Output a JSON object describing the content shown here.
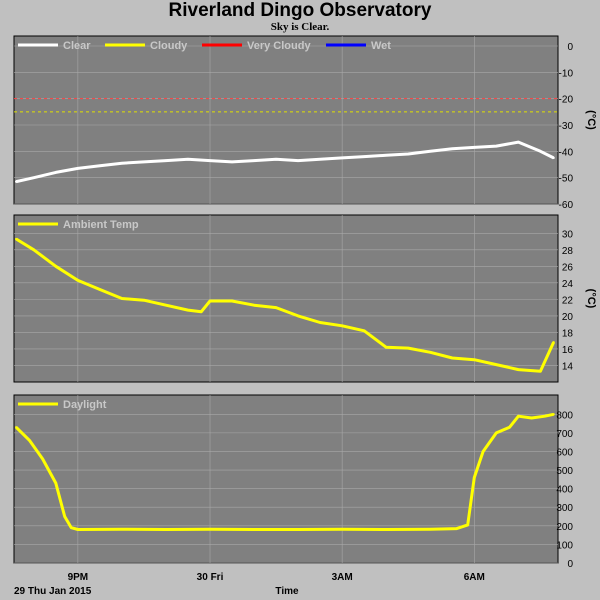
{
  "title": "Riverland Dingo Observatory",
  "subtitle": "Sky is Clear.",
  "footer": {
    "date_label": "29 Thu Jan 2015",
    "xlabel": "Time"
  },
  "colors": {
    "panel": "#808080",
    "grid": "#a8a8a8",
    "clear": "#ffffff",
    "cloudy": "#ffff00",
    "very_cloudy": "#ff0000",
    "wet": "#0000ff",
    "threshold_red": "#ff4040",
    "threshold_yellow": "#e0e000"
  },
  "chart_data": [
    {
      "type": "line",
      "ylabel": "(°C)",
      "ylim": [
        -60,
        0
      ],
      "yticks": [
        "0",
        "-10",
        "-20",
        "-30",
        "-40",
        "-50",
        "-60"
      ],
      "grid": true,
      "legend": [
        {
          "label": "Clear",
          "color": "#ffffff"
        },
        {
          "label": "Cloudy",
          "color": "#ffff00"
        },
        {
          "label": "Very Cloudy",
          "color": "#ff0000"
        },
        {
          "label": "Wet",
          "color": "#0000ff"
        }
      ],
      "thresholds": [
        {
          "y": -20,
          "color": "#ff4040"
        },
        {
          "y": -25,
          "color": "#e0e000"
        }
      ],
      "series": [
        {
          "name": "Clear",
          "color": "#ffffff",
          "x": [
            19.6,
            20.0,
            20.5,
            21.0,
            21.5,
            22.0,
            22.5,
            23.0,
            23.5,
            24.0,
            24.5,
            25.0,
            25.5,
            26.0,
            26.5,
            27.0,
            27.5,
            28.0,
            28.5,
            29.0,
            29.5,
            30.0,
            30.5,
            31.0,
            31.5,
            31.8
          ],
          "y": [
            -51.5,
            -50,
            -48,
            -46.5,
            -45.5,
            -44.5,
            -44,
            -43.5,
            -43,
            -43.5,
            -44,
            -43.5,
            -43,
            -43.5,
            -43,
            -42.5,
            -42,
            -41.5,
            -41,
            -40,
            -39,
            -38.5,
            -38,
            -36.5,
            -40,
            -42.5
          ]
        }
      ]
    },
    {
      "type": "line",
      "ylabel": "(°C)",
      "ylim": [
        12,
        31
      ],
      "yticks": [
        "30",
        "28",
        "26",
        "24",
        "22",
        "20",
        "18",
        "16",
        "14"
      ],
      "grid": true,
      "legend": [
        {
          "label": "Ambient Temp",
          "color": "#ffff00"
        }
      ],
      "series": [
        {
          "name": "Ambient Temp",
          "color": "#ffff00",
          "x": [
            19.6,
            20.0,
            20.5,
            21.0,
            21.5,
            22.0,
            22.5,
            23.0,
            23.5,
            23.8,
            24.0,
            24.5,
            25.0,
            25.5,
            26.0,
            26.5,
            27.0,
            27.5,
            28.0,
            28.5,
            29.0,
            29.5,
            30.0,
            30.5,
            31.0,
            31.5,
            31.8
          ],
          "y": [
            29.3,
            28,
            26,
            24.3,
            23.2,
            22.1,
            21.9,
            21.3,
            20.7,
            20.5,
            21.8,
            21.8,
            21.3,
            21,
            20,
            19.2,
            18.8,
            18.2,
            16.2,
            16.1,
            15.6,
            14.9,
            14.7,
            14.1,
            13.5,
            13.3,
            16.8
          ]
        }
      ]
    },
    {
      "type": "line",
      "ylabel": "",
      "ylim": [
        0,
        850
      ],
      "yticks": [
        "800",
        "700",
        "600",
        "500",
        "400",
        "300",
        "200",
        "100",
        "0"
      ],
      "grid": true,
      "legend": [
        {
          "label": "Daylight",
          "color": "#ffff00"
        }
      ],
      "series": [
        {
          "name": "Daylight",
          "color": "#ffff00",
          "x": [
            19.6,
            19.9,
            20.2,
            20.5,
            20.7,
            20.85,
            21.0,
            22.0,
            23.0,
            24.0,
            25.0,
            26.0,
            27.0,
            28.0,
            29.0,
            29.6,
            29.85,
            30.0,
            30.2,
            30.5,
            30.8,
            31.0,
            31.3,
            31.6,
            31.8
          ],
          "y": [
            730,
            660,
            560,
            430,
            250,
            190,
            180,
            182,
            180,
            182,
            180,
            180,
            182,
            180,
            182,
            185,
            205,
            460,
            600,
            700,
            730,
            790,
            780,
            790,
            800
          ]
        }
      ]
    }
  ],
  "x_axis": {
    "ticks": [
      {
        "x": 21.0,
        "label": "9PM"
      },
      {
        "x": 24.0,
        "label": "30 Fri"
      },
      {
        "x": 27.0,
        "label": "3AM"
      },
      {
        "x": 30.0,
        "label": "6AM"
      }
    ],
    "range": [
      19.55,
      31.9
    ]
  }
}
